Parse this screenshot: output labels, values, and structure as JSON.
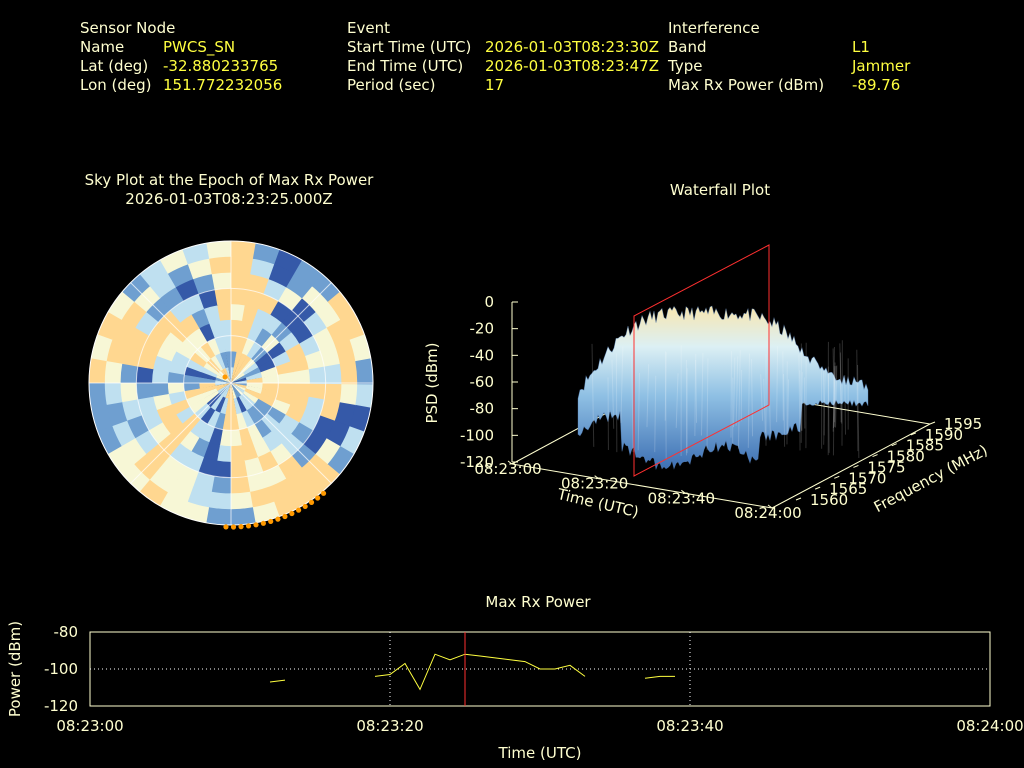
{
  "header": {
    "sensor": {
      "title": "Sensor Node",
      "name_label": "Name",
      "name_value": "PWCS_SN",
      "lat_label": "Lat (deg)",
      "lat_value": "-32.880233765",
      "lon_label": "Lon (deg)",
      "lon_value": "151.772232056"
    },
    "event": {
      "title": "Event",
      "start_label": "Start Time (UTC)",
      "start_value": "2026-01-03T08:23:30Z",
      "end_label": "End Time (UTC)",
      "end_value": "2026-01-03T08:23:47Z",
      "period_label": "Period (sec)",
      "period_value": "17"
    },
    "interference": {
      "title": "Interference",
      "band_label": "Band",
      "band_value": "L1",
      "type_label": "Type",
      "type_value": "Jammer",
      "power_label": "Max Rx Power (dBm)",
      "power_value": "-89.76"
    }
  },
  "colors": {
    "label": "#ffffd0",
    "value": "#ffff40",
    "marker": "#ff3030",
    "skyplot_track": "#ff9900",
    "line": "#ffff40"
  },
  "chart_data": [
    {
      "type": "heatmap",
      "subtype": "polar-skyplot",
      "title": "Sky Plot at the Epoch of Max Rx Power",
      "subtitle": "2026-01-03T08:23:25.000Z",
      "colormap": [
        "#3559a8",
        "#6f9fd0",
        "#bfe0f0",
        "#f7f7d6",
        "#ffd790"
      ],
      "elevation_rings_deg": [
        0,
        30,
        60
      ],
      "azimuth_spokes_deg": [
        0,
        45,
        90,
        135,
        180,
        225,
        270,
        315
      ],
      "track": {
        "color": "orange",
        "az_range_deg": [
          140,
          182
        ],
        "elevation_deg": 0
      }
    },
    {
      "type": "area",
      "subtype": "3d-waterfall",
      "title": "Waterfall Plot",
      "xlabel": "Time (UTC)",
      "x_ticks": [
        "08:23:00",
        "08:23:20",
        "08:23:40",
        "08:24:00"
      ],
      "ylabel": "Frequency (MHz)",
      "y_ticks": [
        1560,
        1565,
        1570,
        1575,
        1580,
        1585,
        1590,
        1595
      ],
      "zlabel": "PSD (dBm)",
      "z_ticks": [
        0,
        -20,
        -40,
        -60,
        -80,
        -100,
        -120
      ],
      "zlim": [
        -120,
        0
      ],
      "marker_time": "08:23:25"
    },
    {
      "type": "line",
      "title": "Max Rx Power",
      "xlabel": "Time (UTC)",
      "ylabel": "Power (dBm)",
      "x_ticks": [
        "08:23:00",
        "08:23:20",
        "08:23:40",
        "08:24:00"
      ],
      "xlim_sec": [
        0,
        60
      ],
      "ylim": [
        -120,
        -80
      ],
      "y_ticks": [
        -80,
        -100,
        -120
      ],
      "marker_time_sec": 25,
      "segments": [
        [
          [
            12,
            -107
          ],
          [
            13,
            -106
          ]
        ],
        [
          [
            19,
            -104
          ],
          [
            20,
            -103
          ],
          [
            21,
            -97
          ],
          [
            22,
            -111
          ],
          [
            23,
            -92
          ],
          [
            24,
            -95
          ],
          [
            25,
            -92
          ],
          [
            26,
            -93
          ],
          [
            27,
            -94
          ],
          [
            28,
            -95
          ],
          [
            29,
            -96
          ],
          [
            30,
            -100
          ],
          [
            31,
            -100
          ],
          [
            32,
            -98
          ],
          [
            33,
            -104
          ]
        ],
        [
          [
            37,
            -105
          ],
          [
            38,
            -104
          ],
          [
            39,
            -104
          ]
        ]
      ]
    }
  ]
}
